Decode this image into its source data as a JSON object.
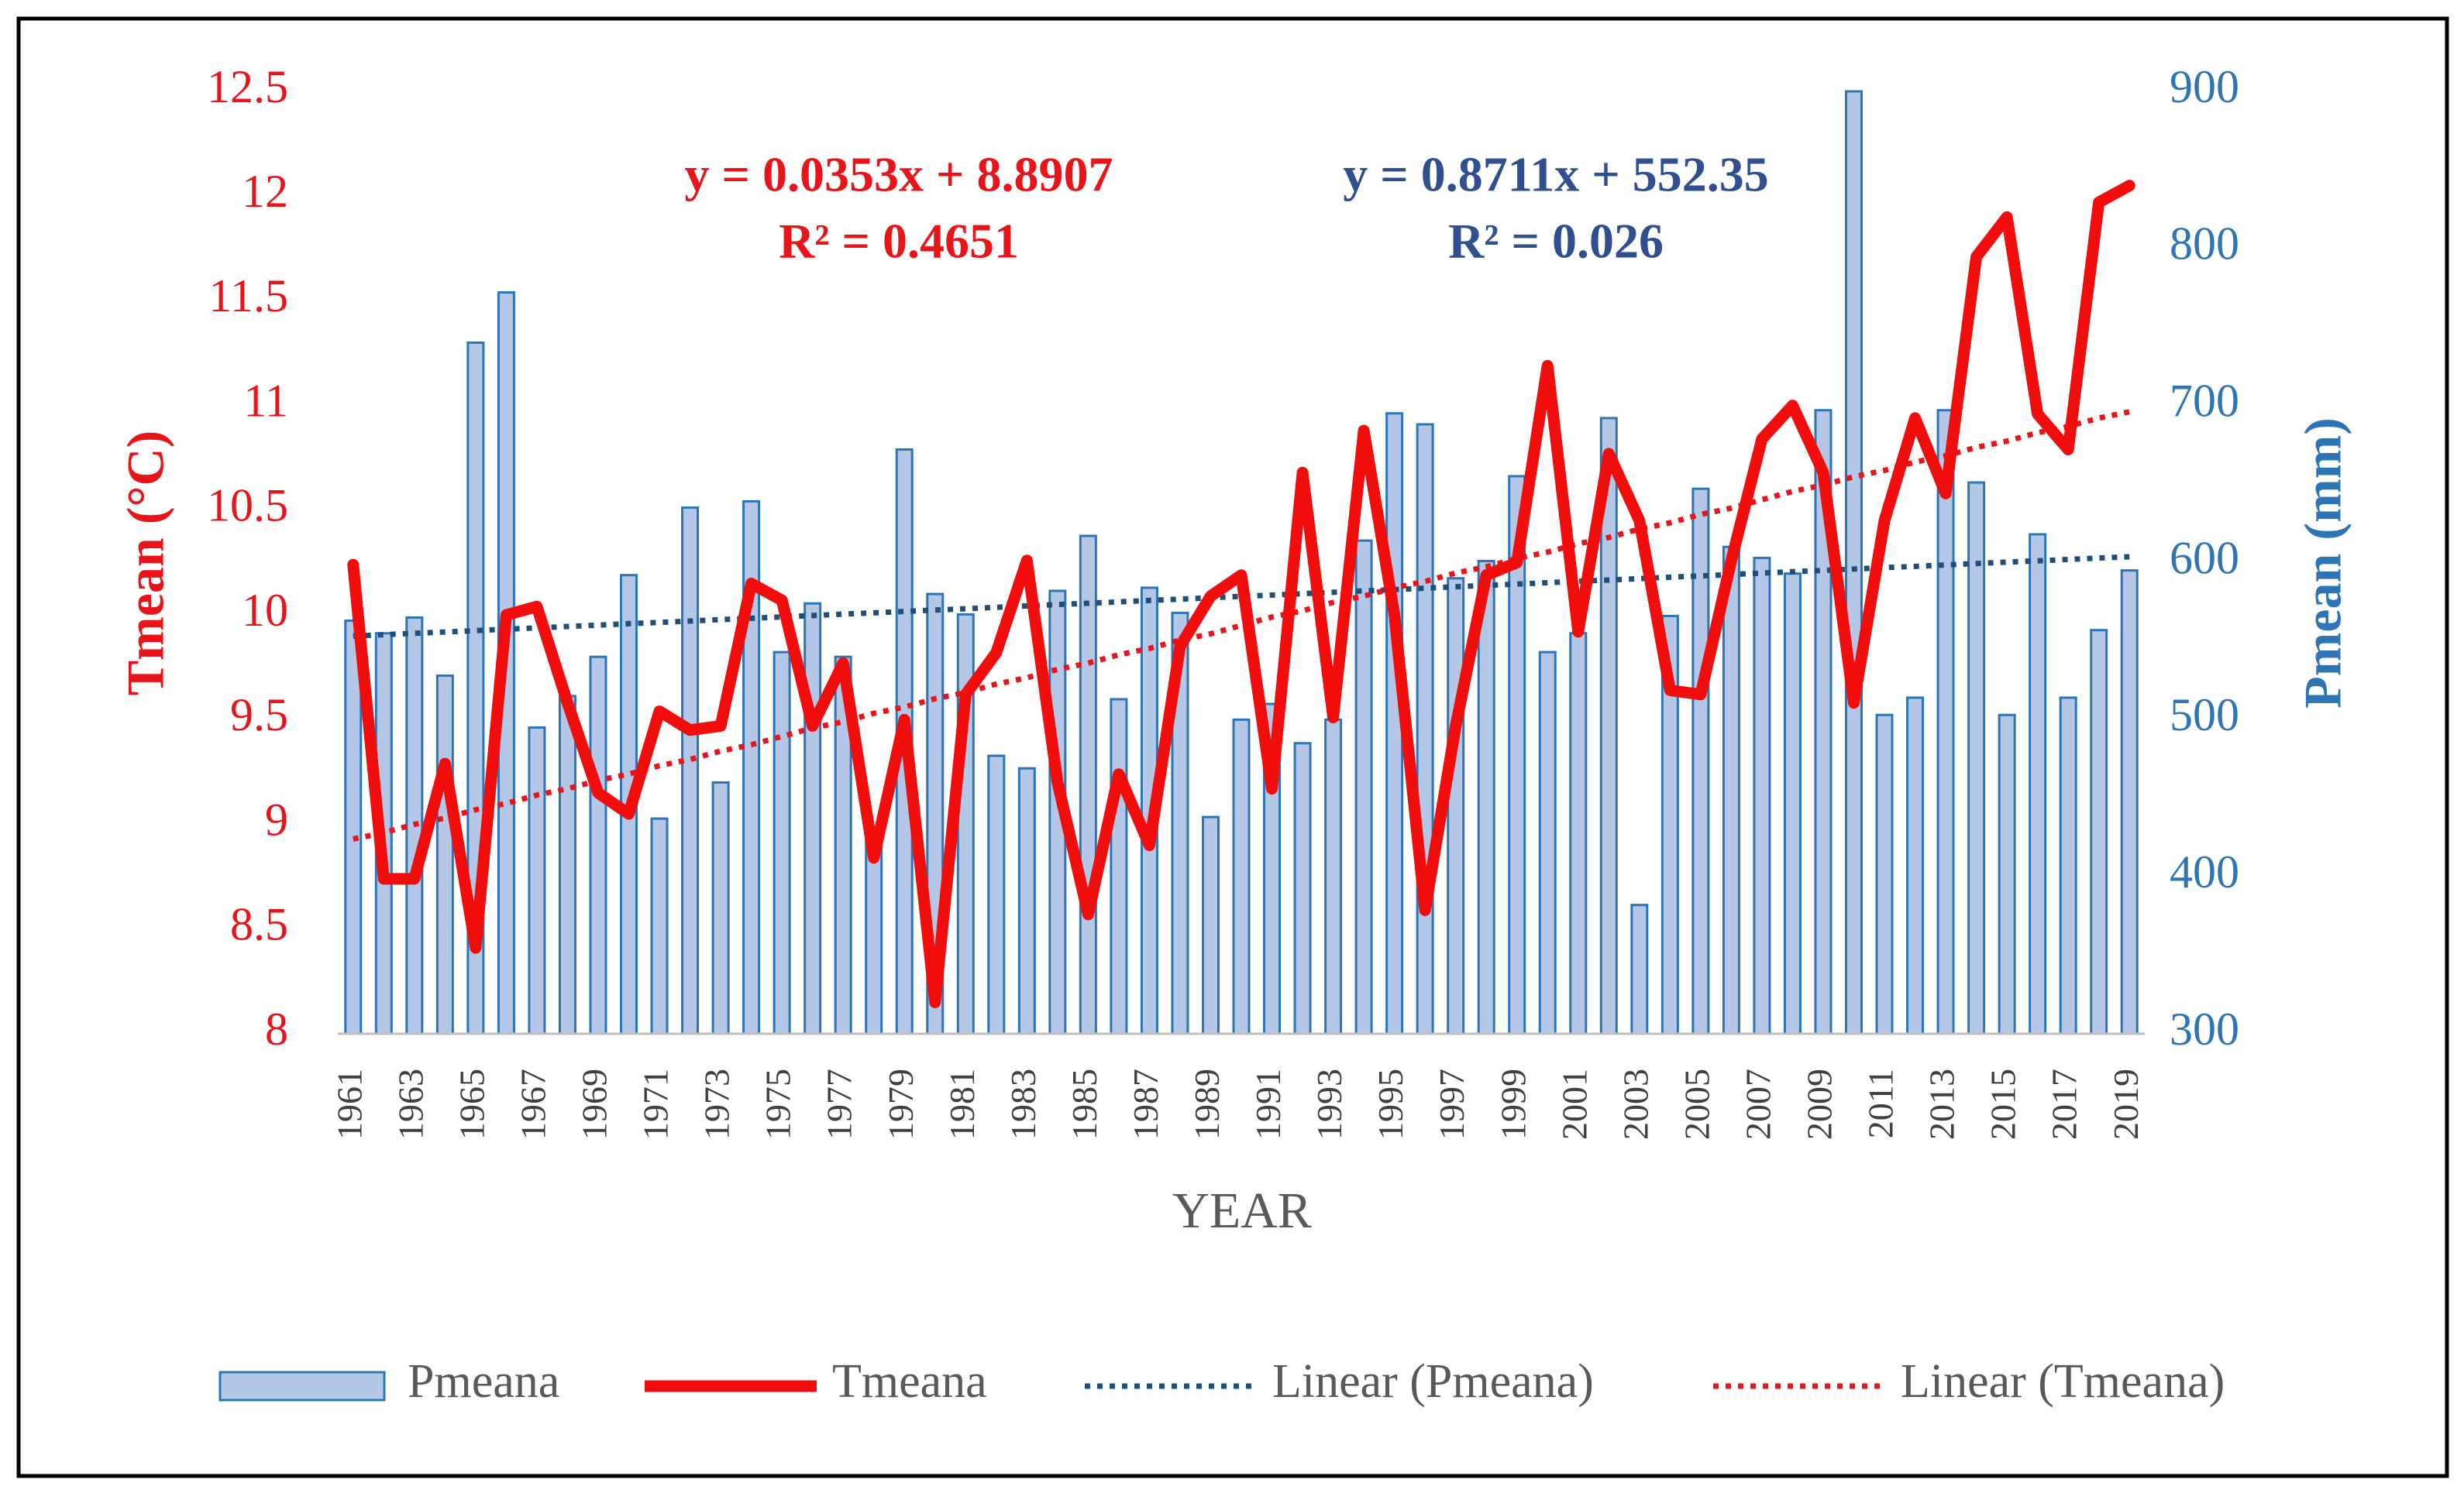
{
  "chart_data": {
    "type": "bar",
    "annotations": [
      {
        "lines": [
          "y = 0.0353x + 8.8907",
          "R² = 0.4651"
        ],
        "color": "#e8141a"
      },
      {
        "lines": [
          "y = 0.8711x + 552.35",
          "R² = 0.026"
        ],
        "color": "#2f4f8f"
      }
    ],
    "xlabel": "YEAR",
    "ylabel": "Tmean (°C)",
    "y2label": "Pmean (mm)",
    "categories": [
      "1961",
      null,
      "1963",
      null,
      "1965",
      null,
      "1967",
      null,
      "1969",
      null,
      "1971",
      null,
      "1973",
      null,
      "1975",
      null,
      "1977",
      null,
      "1979",
      null,
      "1981",
      null,
      "1983",
      null,
      "1985",
      null,
      "1987",
      null,
      "1989",
      null,
      "1991",
      null,
      "1993",
      null,
      "1995",
      null,
      "1997",
      null,
      "1999",
      null,
      "2001",
      null,
      "2003",
      null,
      "2005",
      null,
      "2007",
      null,
      "2009",
      null,
      "2011",
      null,
      "2013",
      null,
      "2015",
      null,
      "2017",
      null,
      "2019"
    ],
    "ylim": [
      8,
      12.5
    ],
    "yticks": [
      8,
      8.5,
      9,
      9.5,
      10,
      10.5,
      11,
      11.5,
      12,
      12.5
    ],
    "y2lim": [
      300,
      900
    ],
    "y2ticks": [
      300,
      400,
      500,
      600,
      700,
      800,
      900
    ],
    "grid": false,
    "legend": "bottom",
    "series": [
      {
        "name": "Pmeana",
        "type": "bar",
        "axis": "y2",
        "color": "#b4c7e7",
        "edge": "#2e75b6",
        "values": [
          563,
          555,
          565,
          528,
          740,
          772,
          495,
          515,
          540,
          592,
          437,
          635,
          460,
          639,
          543,
          574,
          540,
          430,
          672,
          580,
          567,
          477,
          469,
          582,
          617,
          513,
          584,
          568,
          438,
          500,
          510,
          485,
          500,
          614,
          695,
          688,
          590,
          601,
          655,
          543,
          555,
          692,
          382,
          566,
          647,
          610,
          603,
          593,
          697,
          900,
          503,
          514,
          697,
          651,
          503,
          618,
          514,
          557,
          595
        ]
      },
      {
        "name": "Linear (Pmeana)",
        "type": "line",
        "dash": "dotted",
        "axis": "y2",
        "color": "#1f4e79",
        "values": [
          553.2,
          554.1,
          555.0,
          555.8,
          556.7,
          557.6,
          558.4,
          559.3,
          560.2,
          561.1,
          561.9,
          562.8,
          563.7,
          564.5,
          565.4,
          566.3,
          567.2,
          568.0,
          568.9,
          569.8,
          570.6,
          571.5,
          572.4,
          573.3,
          574.1,
          575.0,
          575.9,
          576.7,
          577.6,
          578.5,
          579.3,
          580.2,
          581.1,
          582.0,
          582.8,
          583.7,
          584.6,
          585.5,
          586.3,
          587.2,
          588.1,
          588.9,
          589.8,
          590.7,
          591.5,
          592.4,
          593.3,
          594.2,
          595.0,
          595.9,
          596.8,
          597.6,
          598.5,
          599.4,
          600.3,
          601.1,
          602.0,
          602.9,
          603.7
        ]
      },
      {
        "name": "Linear (Tmeana)",
        "type": "line",
        "dash": "dotted",
        "color": "#e8141a",
        "values": [
          8.93,
          8.96,
          9.0,
          9.03,
          9.07,
          9.1,
          9.14,
          9.17,
          9.21,
          9.24,
          9.28,
          9.31,
          9.35,
          9.38,
          9.42,
          9.46,
          9.49,
          9.53,
          9.56,
          9.6,
          9.63,
          9.67,
          9.7,
          9.74,
          9.77,
          9.81,
          9.84,
          9.88,
          9.91,
          9.95,
          9.99,
          10.02,
          10.06,
          10.09,
          10.13,
          10.16,
          10.2,
          10.23,
          10.27,
          10.3,
          10.34,
          10.37,
          10.41,
          10.44,
          10.48,
          10.51,
          10.55,
          10.59,
          10.62,
          10.66,
          10.69,
          10.73,
          10.76,
          10.8,
          10.83,
          10.87,
          10.9,
          10.94,
          10.97
        ]
      },
      {
        "name": "Tmeana",
        "type": "line",
        "color": "#f20d0d",
        "values": [
          10.24,
          8.74,
          8.74,
          9.29,
          8.41,
          10.0,
          10.04,
          9.58,
          9.15,
          9.05,
          9.54,
          9.45,
          9.47,
          10.15,
          10.07,
          9.47,
          9.77,
          8.84,
          9.5,
          8.15,
          9.62,
          9.82,
          10.26,
          9.2,
          8.57,
          9.24,
          8.9,
          9.85,
          10.09,
          10.19,
          9.17,
          10.68,
          9.51,
          10.88,
          10.0,
          8.59,
          9.47,
          10.19,
          10.25,
          11.19,
          9.92,
          10.77,
          10.45,
          9.64,
          9.62,
          10.26,
          10.84,
          11.0,
          10.68,
          9.58,
          10.45,
          10.94,
          10.58,
          11.71,
          11.9,
          10.96,
          10.79,
          11.97,
          12.05
        ]
      }
    ]
  }
}
